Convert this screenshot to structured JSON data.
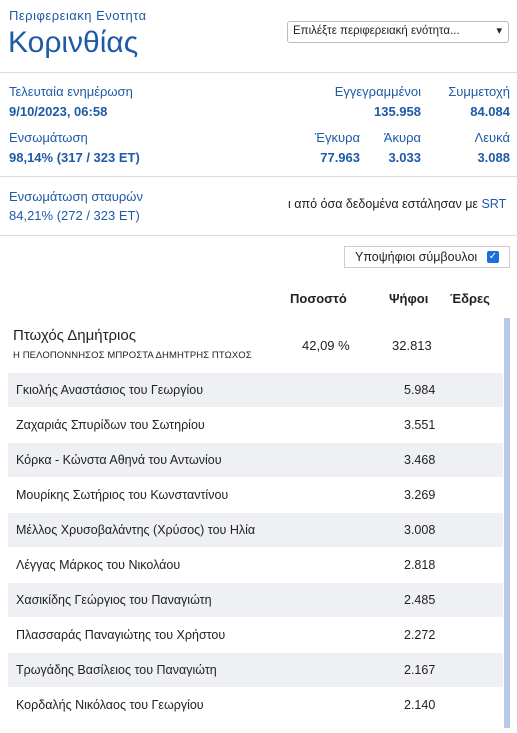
{
  "header": {
    "eyebrow": "Περιφερειακη Ενοτητα",
    "title": "Κορινθίας",
    "select_value": "Επιλέξτε περιφερειακή ενότητα..."
  },
  "stats": {
    "last_update_label": "Τελευταία ενημέρωση",
    "last_update_value": "9/10/2023, 06:58",
    "registered_label": "Εγγεγραμμένοι",
    "registered_value": "135.958",
    "turnout_label": "Συμμετοχή",
    "turnout_value": "84.084",
    "integration_label": "Ενσωμάτωση",
    "integration_value": "98,14% (317 / 323 ΕΤ)",
    "valid_label": "Έγκυρα",
    "valid_value": "77.963",
    "invalid_label": "Άκυρα",
    "invalid_value": "3.033",
    "blank_label": "Λευκά",
    "blank_value": "3.088"
  },
  "cross": {
    "label": "Ενσωμάτωση σταυρών",
    "value": "84,21% (272 / 323 ΕΤ)",
    "note": "ι από όσα δεδομένα εστάλησαν με",
    "note_link": "SRT"
  },
  "toggle": {
    "label": "Υποψήφιοι σύμβουλοι",
    "checked": true
  },
  "table": {
    "headers": {
      "percent": "Ποσοστό",
      "votes": "Ψήφοι",
      "seats": "Έδρες"
    },
    "top": {
      "name": "Πτωχός Δημήτριος",
      "party": "Η ΠΕΛΟΠΟΝΝΗΣΟΣ ΜΠΡΟΣΤΑ ΔΗΜΗΤΡΗΣ ΠΤΩΧΟΣ",
      "percent": "42,09 %",
      "votes": "32.813"
    },
    "rows": [
      {
        "name": "Γκιολής Αναστάσιος του Γεωργίου",
        "votes": "5.984"
      },
      {
        "name": "Ζαχαριάς Σπυρίδων του Σωτηρίου",
        "votes": "3.551"
      },
      {
        "name": "Κόρκα - Κώνστα Αθηνά του Αντωνίου",
        "votes": "3.468"
      },
      {
        "name": "Μουρίκης Σωτήριος του Κωνσταντίνου",
        "votes": "3.269"
      },
      {
        "name": "Μέλλος Χρυσοβαλάντης (Χρύσος) του Ηλία",
        "votes": "3.008"
      },
      {
        "name": "Λέγγας Μάρκος του Νικολάου",
        "votes": "2.818"
      },
      {
        "name": "Χασικίδης Γεώργιος του Παναγιώτη",
        "votes": "2.485"
      },
      {
        "name": "Πλασσαράς Παναγιώτης του Χρήστου",
        "votes": "2.272"
      },
      {
        "name": "Τρωγάδης Βασίλειος του Παναγιώτη",
        "votes": "2.167"
      },
      {
        "name": "Κορδαλής Νικόλαος του Γεωργίου",
        "votes": "2.140"
      }
    ]
  }
}
